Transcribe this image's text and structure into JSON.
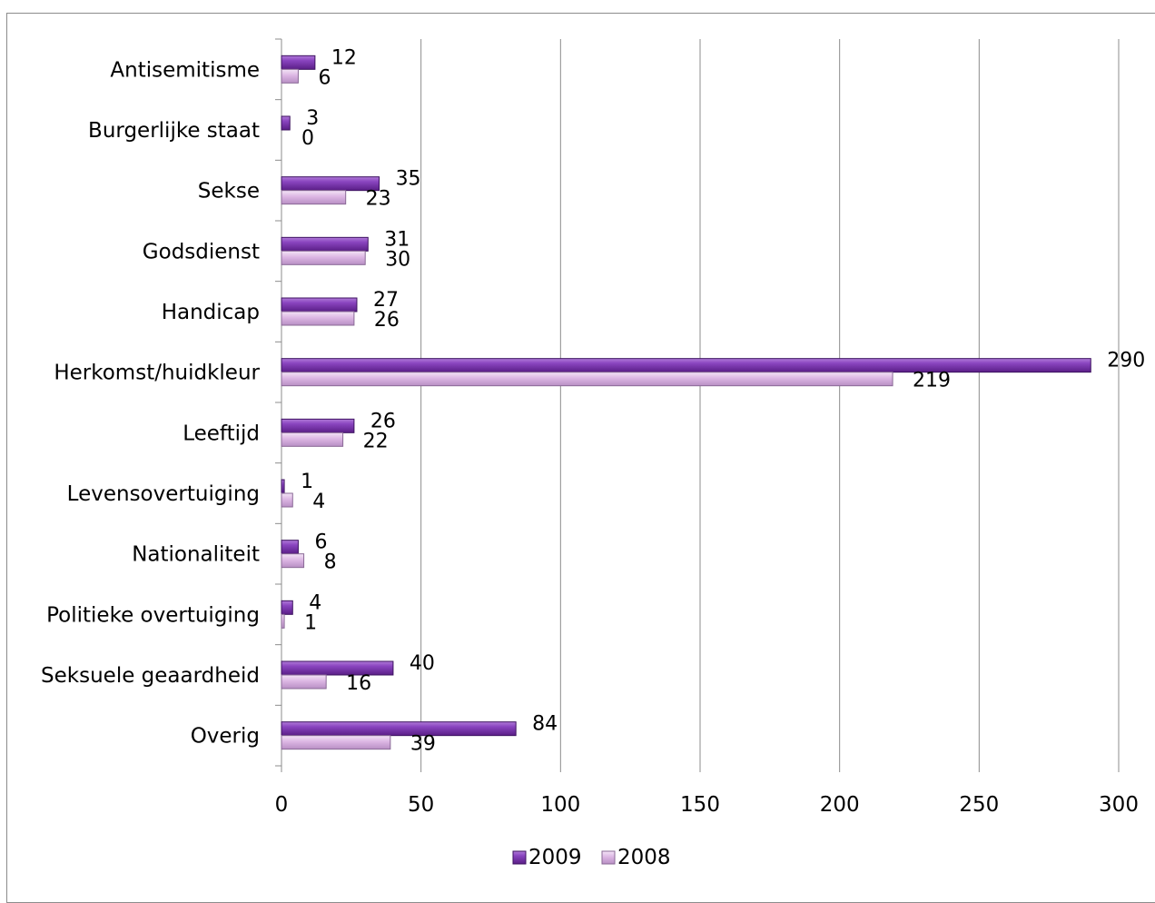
{
  "chart_data": {
    "type": "bar",
    "orientation": "horizontal",
    "categories": [
      "Antisemitisme",
      "Burgerlijke staat",
      "Sekse",
      "Godsdienst",
      "Handicap",
      "Herkomst/huidkleur",
      "Leeftijd",
      "Levensovertuiging",
      "Nationaliteit",
      "Politieke overtuiging",
      "Seksuele geaardheid",
      "Overig"
    ],
    "series": [
      {
        "name": "2009",
        "color": "#7030a0",
        "values": [
          12,
          3,
          35,
          31,
          27,
          290,
          26,
          1,
          6,
          4,
          40,
          84
        ]
      },
      {
        "name": "2008",
        "color": "#d9b3e0",
        "values": [
          6,
          0,
          23,
          30,
          26,
          219,
          22,
          4,
          8,
          1,
          16,
          39
        ]
      }
    ],
    "xlim": [
      0,
      300
    ],
    "xticks": [
      "0",
      "50",
      "100",
      "150",
      "200",
      "250",
      "300"
    ],
    "title": "",
    "xlabel": "",
    "ylabel": "",
    "grid": "vertical",
    "legend_position": "bottom"
  }
}
